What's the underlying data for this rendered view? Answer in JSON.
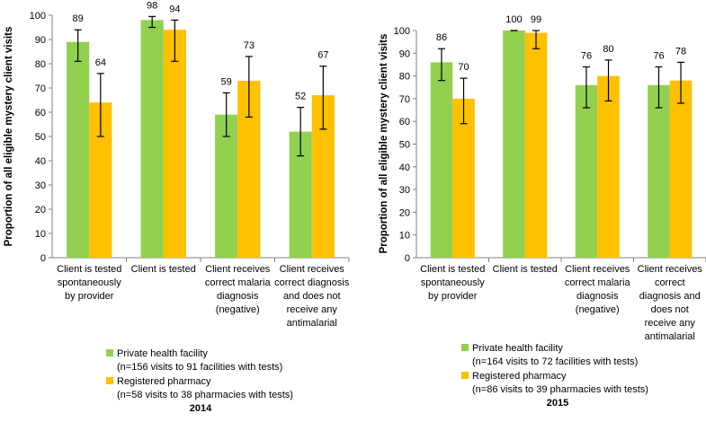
{
  "figure": {
    "colors": {
      "private": "#92D050",
      "pharmacy": "#FFC000",
      "axis": "#808080",
      "errorbar": "#000000"
    }
  },
  "chart_data": [
    {
      "type": "bar",
      "title": "2014",
      "ylabel": "Proportion of all eligible mystery client visits",
      "ylim": [
        0,
        100
      ],
      "yticks": [
        0,
        10,
        20,
        30,
        40,
        50,
        60,
        70,
        80,
        90,
        100
      ],
      "categories": [
        [
          "Client is tested",
          "spontaneously",
          "by provider"
        ],
        [
          "Client is tested"
        ],
        [
          "Client receives",
          "correct malaria",
          "diagnosis",
          "(negative)"
        ],
        [
          "Client receives",
          "correct diagnosis",
          "and does not",
          "receive any",
          "antimalarial"
        ]
      ],
      "series": [
        {
          "name": "Private health facility",
          "note": "(n=156 visits to 91 facilities with tests)",
          "values": [
            89,
            98,
            59,
            52
          ],
          "err_low": [
            81,
            95,
            50,
            42
          ],
          "err_high": [
            94,
            99.5,
            68,
            62
          ]
        },
        {
          "name": "Registered pharmacy",
          "note": "(n=58 visits to 38 pharmacies with tests)",
          "values": [
            64,
            94,
            73,
            67
          ],
          "err_low": [
            50,
            81,
            58,
            53
          ],
          "err_high": [
            76,
            98,
            83,
            79
          ]
        }
      ]
    },
    {
      "type": "bar",
      "title": "2015",
      "ylabel": "Proportion of all eligible mystery client visits",
      "ylim": [
        0,
        100
      ],
      "yticks": [
        0,
        10,
        20,
        30,
        40,
        50,
        60,
        70,
        80,
        90,
        100
      ],
      "categories": [
        [
          "Client is tested",
          "spontaneously",
          "by provider"
        ],
        [
          "Client is tested"
        ],
        [
          "Client receives",
          "correct malaria",
          "diagnosis",
          "(negative)"
        ],
        [
          "Client receives",
          "correct",
          "diagnosis and",
          "does not",
          "receive any",
          "antimalarial"
        ]
      ],
      "series": [
        {
          "name": "Private health facility",
          "note": "(n=164 visits to 72 facilities with tests)",
          "values": [
            86,
            100,
            76,
            76
          ],
          "err_low": [
            78,
            100,
            66,
            66
          ],
          "err_high": [
            92,
            100,
            84,
            84
          ]
        },
        {
          "name": "Registered pharmacy",
          "note": "(n=86 visits to 39 pharmacies with tests)",
          "values": [
            70,
            99,
            80,
            78
          ],
          "err_low": [
            59,
            92,
            69,
            68
          ],
          "err_high": [
            79,
            100,
            87,
            86
          ]
        }
      ]
    }
  ]
}
